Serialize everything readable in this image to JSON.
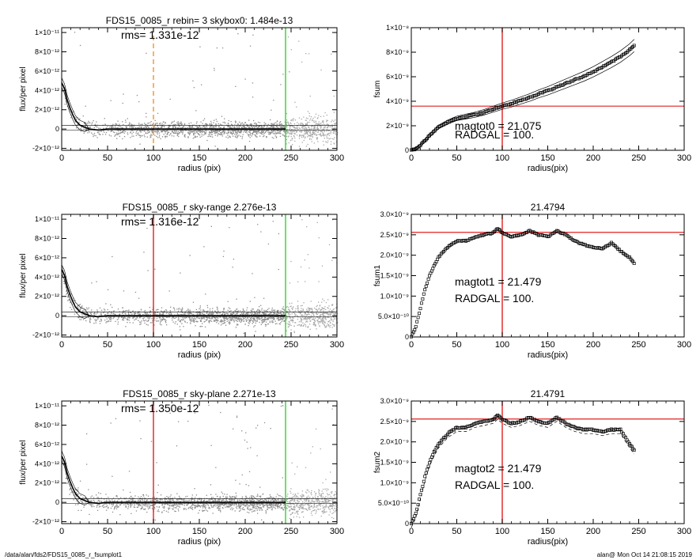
{
  "footer": {
    "left": "/data/alan/fds2/FDS15_0085_r_fsumplot1",
    "right": "alan@  Mon Oct 14 21:08:15 2019"
  },
  "colors": {
    "axis": "#000000",
    "scatter": "#8c8c8c",
    "profile": "#000000",
    "orange": "#f0952a",
    "red": "#e02020",
    "green": "#2ed42e"
  },
  "chart_data": [
    {
      "id": "p1",
      "type": "scatter",
      "title": "FDS15_0085_r rebin= 3    skybox0:  1.484e-13",
      "xlabel": "radius (pix)",
      "ylabel": "flux/per pixel",
      "xlim": [
        0,
        300
      ],
      "ylim": [
        -2.2e-12,
        1.05e-11
      ],
      "xticks": [
        0,
        50,
        100,
        150,
        200,
        250,
        300
      ],
      "xtick_labels": [
        "0",
        "50",
        "100",
        "150",
        "200",
        "250",
        "300"
      ],
      "yticks": [
        -2e-12,
        0,
        2e-12,
        4e-12,
        6e-12,
        8e-12,
        1e-11
      ],
      "ytick_labels": [
        "-2×10⁻¹²",
        "0",
        "2×10⁻¹²",
        "4×10⁻¹²",
        "6×10⁻¹²",
        "8×10⁻¹²",
        "1×10⁻¹¹"
      ],
      "annotations": [
        "rms= 1.331e-12"
      ],
      "vlines": [
        {
          "x": 100,
          "color": "orange",
          "dashed": true
        },
        {
          "x": 244,
          "color": "green"
        }
      ],
      "hlines": [],
      "series": [
        {
          "x": [
            0,
            3,
            6,
            9,
            12,
            15,
            20,
            25,
            30,
            40,
            50,
            70,
            100,
            150,
            200,
            244
          ],
          "y": [
            4.8e-12,
            4.2e-12,
            3e-12,
            2.2e-12,
            1.5e-12,
            9e-13,
            4e-13,
            2e-13,
            0,
            -1e-13,
            0,
            0,
            0,
            0,
            0,
            0
          ]
        }
      ]
    },
    {
      "id": "p2",
      "type": "scatter",
      "title": "FDS15_0085_r sky-range  2.276e-13",
      "xlabel": "radius (pix)",
      "ylabel": "flux/per pixel",
      "xlim": [
        0,
        300
      ],
      "ylim": [
        -2.2e-12,
        1.05e-11
      ],
      "xticks": [
        0,
        50,
        100,
        150,
        200,
        250,
        300
      ],
      "xtick_labels": [
        "0",
        "50",
        "100",
        "150",
        "200",
        "250",
        "300"
      ],
      "yticks": [
        -2e-12,
        0,
        2e-12,
        4e-12,
        6e-12,
        8e-12,
        1e-11
      ],
      "ytick_labels": [
        "-2×10⁻¹²",
        "0",
        "2×10⁻¹²",
        "4×10⁻¹²",
        "6×10⁻¹²",
        "8×10⁻¹²",
        "1×10⁻¹¹"
      ],
      "annotations": [
        "rms= 1.316e-12"
      ],
      "vlines": [
        {
          "x": 100,
          "color": "red"
        },
        {
          "x": 244,
          "color": "green"
        }
      ],
      "hlines": [],
      "series": [
        {
          "x": [
            0,
            3,
            6,
            9,
            12,
            15,
            20,
            25,
            30,
            40,
            50,
            70,
            100,
            150,
            200,
            244
          ],
          "y": [
            4.8e-12,
            4.2e-12,
            3e-12,
            2.2e-12,
            1.5e-12,
            9e-13,
            4e-13,
            2e-13,
            0,
            -1e-13,
            0,
            0,
            0,
            0,
            0,
            0
          ]
        }
      ]
    },
    {
      "id": "p3",
      "type": "scatter",
      "title": "FDS15_0085_r sky-plane  2.271e-13",
      "xlabel": "radius (pix)",
      "ylabel": "flux/per pixel",
      "xlim": [
        0,
        300
      ],
      "ylim": [
        -2.2e-12,
        1.05e-11
      ],
      "xticks": [
        0,
        50,
        100,
        150,
        200,
        250,
        300
      ],
      "xtick_labels": [
        "0",
        "50",
        "100",
        "150",
        "200",
        "250",
        "300"
      ],
      "yticks": [
        -2e-12,
        0,
        2e-12,
        4e-12,
        6e-12,
        8e-12,
        1e-11
      ],
      "ytick_labels": [
        "-2×10⁻¹²",
        "0",
        "2×10⁻¹²",
        "4×10⁻¹²",
        "6×10⁻¹²",
        "8×10⁻¹²",
        "1×10⁻¹¹"
      ],
      "annotations": [
        "rms= 1.350e-12"
      ],
      "vlines": [
        {
          "x": 100,
          "color": "red"
        },
        {
          "x": 244,
          "color": "green"
        }
      ],
      "hlines": [],
      "series": [
        {
          "x": [
            0,
            3,
            6,
            9,
            12,
            15,
            20,
            25,
            30,
            40,
            50,
            70,
            100,
            150,
            200,
            244
          ],
          "y": [
            4.8e-12,
            4.2e-12,
            3e-12,
            2.2e-12,
            1.5e-12,
            9e-13,
            4e-13,
            2e-13,
            0,
            -1e-13,
            0,
            0,
            0,
            0,
            0,
            0
          ]
        }
      ]
    },
    {
      "id": "p4",
      "type": "line",
      "title": "",
      "xlabel": "radius(pix)",
      "ylabel": "fsum",
      "xlim": [
        0,
        300
      ],
      "ylim": [
        0,
        1e-08
      ],
      "xticks": [
        0,
        50,
        100,
        150,
        200,
        250,
        300
      ],
      "xtick_labels": [
        "0",
        "50",
        "100",
        "150",
        "200",
        "250",
        "300"
      ],
      "yticks": [
        0,
        2e-09,
        4e-09,
        6e-09,
        8e-09,
        1e-08
      ],
      "ytick_labels": [
        "0",
        "2×10⁻⁹",
        "4×10⁻⁹",
        "6×10⁻⁹",
        "8×10⁻⁹",
        "1×10⁻⁸"
      ],
      "annotations": [
        "magtot0 =  21.075",
        "RADGAL =    100."
      ],
      "vlines": [
        {
          "x": 100,
          "color": "red"
        }
      ],
      "hlines": [
        {
          "y": 3.6e-09,
          "color": "red"
        }
      ],
      "series": [
        {
          "x": [
            0,
            5,
            10,
            15,
            20,
            30,
            40,
            50,
            60,
            70,
            80,
            90,
            100,
            110,
            120,
            130,
            140,
            150,
            160,
            170,
            180,
            190,
            200,
            210,
            220,
            230,
            240,
            245
          ],
          "y": [
            0,
            1e-10,
            4e-10,
            8e-10,
            1.2e-09,
            1.9e-09,
            2.3e-09,
            2.6e-09,
            2.75e-09,
            2.9e-09,
            3.1e-09,
            3.35e-09,
            3.6e-09,
            3.8e-09,
            4.05e-09,
            4.3e-09,
            4.6e-09,
            4.85e-09,
            5.15e-09,
            5.45e-09,
            5.75e-09,
            6.05e-09,
            6.4e-09,
            6.8e-09,
            7.2e-09,
            7.65e-09,
            8.2e-09,
            8.55e-09
          ]
        }
      ]
    },
    {
      "id": "p5",
      "type": "scatter",
      "title": "21.4794",
      "xlabel": "radius(pix)",
      "ylabel": "fsum1",
      "xlim": [
        0,
        300
      ],
      "ylim": [
        0,
        3e-09
      ],
      "xticks": [
        0,
        50,
        100,
        150,
        200,
        250,
        300
      ],
      "xtick_labels": [
        "0",
        "50",
        "100",
        "150",
        "200",
        "250",
        "300"
      ],
      "yticks": [
        0,
        5e-10,
        1e-09,
        1.5e-09,
        2e-09,
        2.5e-09,
        3e-09
      ],
      "ytick_labels": [
        "0",
        "5.0×10⁻¹⁰",
        "1.0×10⁻⁹",
        "1.5×10⁻⁹",
        "2.0×10⁻⁹",
        "2.5×10⁻⁹",
        "3.0×10⁻⁹"
      ],
      "annotations": [
        "magtot1 =  21.479",
        "RADGAL =    100."
      ],
      "vlines": [
        {
          "x": 100,
          "color": "red"
        }
      ],
      "hlines": [
        {
          "y": 2.56e-09,
          "color": "red"
        }
      ],
      "series": [
        {
          "x": [
            0,
            5,
            10,
            15,
            20,
            25,
            30,
            40,
            50,
            60,
            70,
            80,
            90,
            95,
            100,
            110,
            120,
            130,
            140,
            150,
            160,
            170,
            180,
            190,
            200,
            210,
            220,
            230,
            240,
            245
          ],
          "y": [
            0,
            2.5e-10,
            7e-10,
            1.15e-09,
            1.5e-09,
            1.75e-09,
            1.95e-09,
            2.2e-09,
            2.35e-09,
            2.35e-09,
            2.45e-09,
            2.5e-09,
            2.55e-09,
            2.65e-09,
            2.55e-09,
            2.45e-09,
            2.5e-09,
            2.6e-09,
            2.5e-09,
            2.45e-09,
            2.6e-09,
            2.5e-09,
            2.35e-09,
            2.25e-09,
            2.2e-09,
            2.15e-09,
            2.3e-09,
            2.1e-09,
            1.95e-09,
            1.8e-09
          ]
        }
      ]
    },
    {
      "id": "p6",
      "type": "scatter",
      "title": "21.4791",
      "xlabel": "radius(pix)",
      "ylabel": "fsum2",
      "xlim": [
        0,
        300
      ],
      "ylim": [
        0,
        3e-09
      ],
      "xticks": [
        0,
        50,
        100,
        150,
        200,
        250,
        300
      ],
      "xtick_labels": [
        "0",
        "50",
        "100",
        "150",
        "200",
        "250",
        "300"
      ],
      "yticks": [
        0,
        5e-10,
        1e-09,
        1.5e-09,
        2e-09,
        2.5e-09,
        3e-09
      ],
      "ytick_labels": [
        "0",
        "5.0×10⁻¹⁰",
        "1.0×10⁻⁹",
        "1.5×10⁻⁹",
        "2.0×10⁻⁹",
        "2.5×10⁻⁹",
        "3.0×10⁻⁹"
      ],
      "annotations": [
        "magtot2 =  21.479",
        "RADGAL =    100."
      ],
      "vlines": [
        {
          "x": 100,
          "color": "red"
        }
      ],
      "hlines": [
        {
          "y": 2.56e-09,
          "color": "red"
        }
      ],
      "series": [
        {
          "x": [
            0,
            5,
            10,
            15,
            20,
            25,
            30,
            40,
            50,
            60,
            70,
            80,
            90,
            95,
            100,
            110,
            120,
            130,
            140,
            150,
            160,
            170,
            180,
            190,
            200,
            210,
            220,
            230,
            240,
            245
          ],
          "y": [
            0,
            2.5e-10,
            7e-10,
            1.15e-09,
            1.5e-09,
            1.75e-09,
            1.95e-09,
            2.2e-09,
            2.35e-09,
            2.35e-09,
            2.45e-09,
            2.5e-09,
            2.55e-09,
            2.65e-09,
            2.55e-09,
            2.45e-09,
            2.5e-09,
            2.6e-09,
            2.5e-09,
            2.45e-09,
            2.6e-09,
            2.45e-09,
            2.35e-09,
            2.3e-09,
            2.3e-09,
            2.25e-09,
            2.3e-09,
            2.3e-09,
            1.95e-09,
            1.8e-09
          ]
        }
      ]
    }
  ]
}
